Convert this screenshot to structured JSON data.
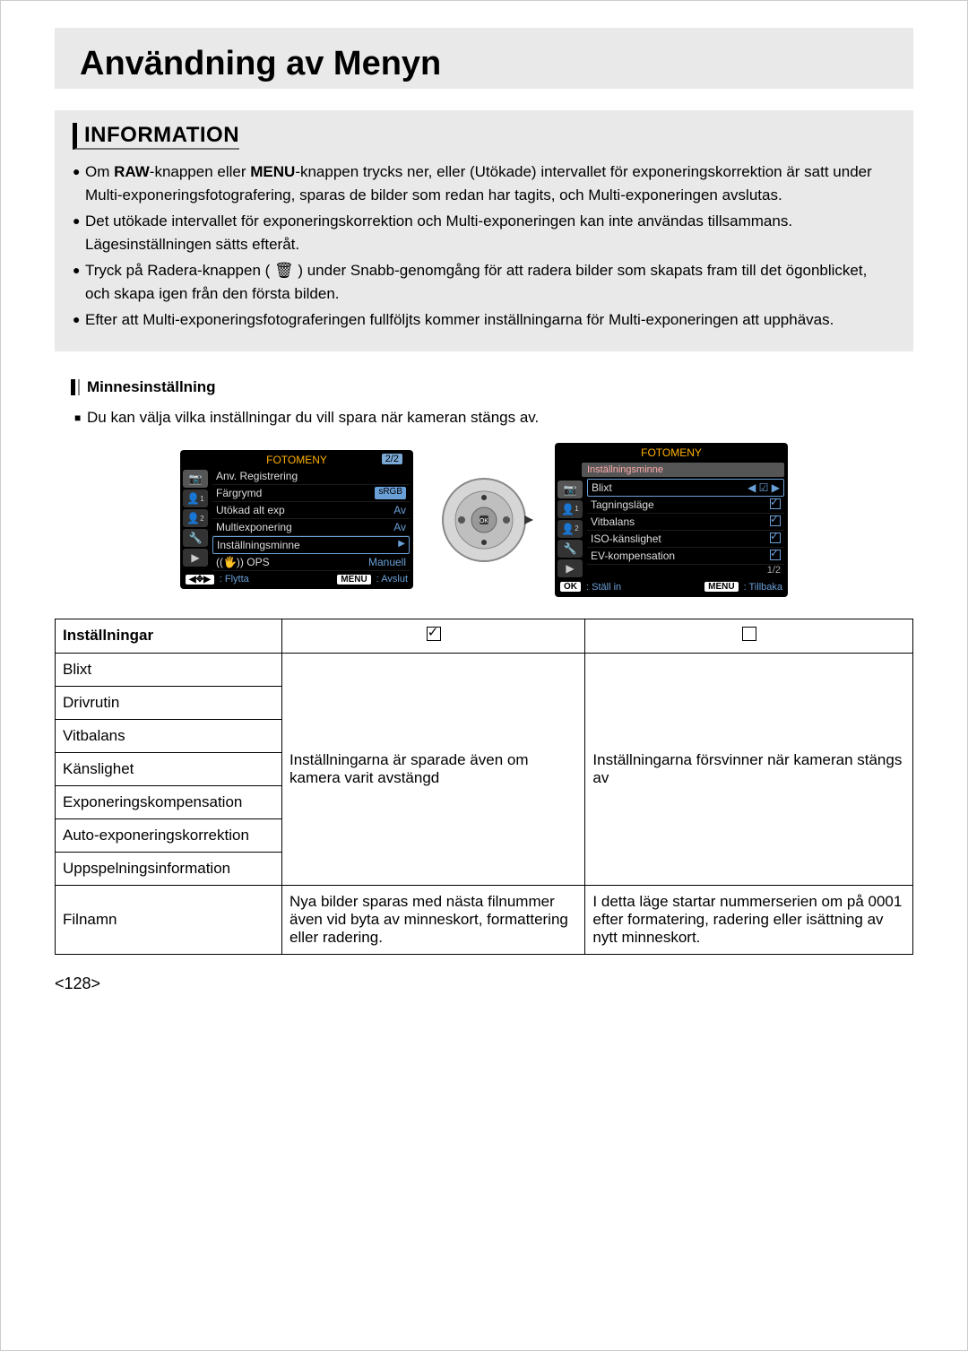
{
  "page": {
    "title": "Användning av Menyn",
    "info_heading": "INFORMATION",
    "page_number": "<128>"
  },
  "info_items": [
    "Om RAW-knappen eller MENU-knappen trycks ner, eller (Utökade) intervallet för exponeringskorrektion är satt under Multi-exponeringsfotografering, sparas de bilder som redan har tagits, och Multi-exponeringen avslutas.",
    "Det utökade intervallet för exponeringskorrektion och Multi-exponeringen kan inte användas tillsammans. Lägesinställningen sätts efteråt.",
    "Tryck på Radera-knappen ( 🗑 ) under Snabb-genomgång för att radera bilder som skapats fram till det ögonblicket, och skapa igen från den första bilden.",
    "Efter att Multi-exponeringsfotograferingen fullföljts kommer inställningarna för Multi-exponeringen att upphävas."
  ],
  "subheading": "Minnesinställning",
  "intro_text": "Du kan välja vilka inställningar du vill spara när kameran stängs av.",
  "lcd_left": {
    "title": "FOTOMENY",
    "page": "2/2",
    "items": [
      {
        "label": "Anv. Registrering",
        "value": ""
      },
      {
        "label": "Färgrymd",
        "value": "sRGB",
        "badge": true
      },
      {
        "label": "Utökad alt exp",
        "value": "Av"
      },
      {
        "label": "Multiexponering",
        "value": "Av"
      },
      {
        "label": "Inställningsminne",
        "value": "▶",
        "selected": true
      },
      {
        "label": "((🖐)) OPS",
        "value": "Manuell"
      }
    ],
    "bottom_left_icon": "◀✥▶",
    "bottom_left_label": ": Flytta",
    "bottom_right_icon": "MENU",
    "bottom_right_label": ": Avslut"
  },
  "lcd_right": {
    "title": "FOTOMENY",
    "sub_header": "Inställningsminne",
    "items": [
      {
        "label": "Blixt",
        "value": "◀ ☑ ▶",
        "selected": true
      },
      {
        "label": "Tagningsläge",
        "value": "check"
      },
      {
        "label": "Vitbalans",
        "value": "check"
      },
      {
        "label": "ISO-känslighet",
        "value": "check"
      },
      {
        "label": "EV-kompensation",
        "value": "check"
      }
    ],
    "page": "1/2",
    "bottom_left_icon": "OK",
    "bottom_left_label": ": Ställ in",
    "bottom_right_icon": "MENU",
    "bottom_right_label": ": Tillbaka"
  },
  "table": {
    "header": {
      "c1": "Inställningar"
    },
    "group_rows": [
      "Blixt",
      "Drivrutin",
      "Vitbalans",
      "Känslighet",
      "Exponeringskompensation",
      "Auto-exponeringskorrektion",
      "Uppspelningsinformation"
    ],
    "group_desc_checked": "Inställningarna är sparade även om kamera varit avstängd",
    "group_desc_unchecked": "Inställningarna försvinner när kameran stängs av",
    "filnamn_label": "Filnamn",
    "filnamn_checked": "Nya bilder sparas med nästa filnummer även vid byta av minneskort, formattering eller radering.",
    "filnamn_unchecked": "I detta läge startar nummerserien om på 0001 efter formatering, radering eller isättning av nytt minneskort."
  },
  "colors": {
    "panel_bg": "#e9e9e9",
    "accent_blue": "#6aa0d8",
    "accent_orange": "#ffb000"
  }
}
